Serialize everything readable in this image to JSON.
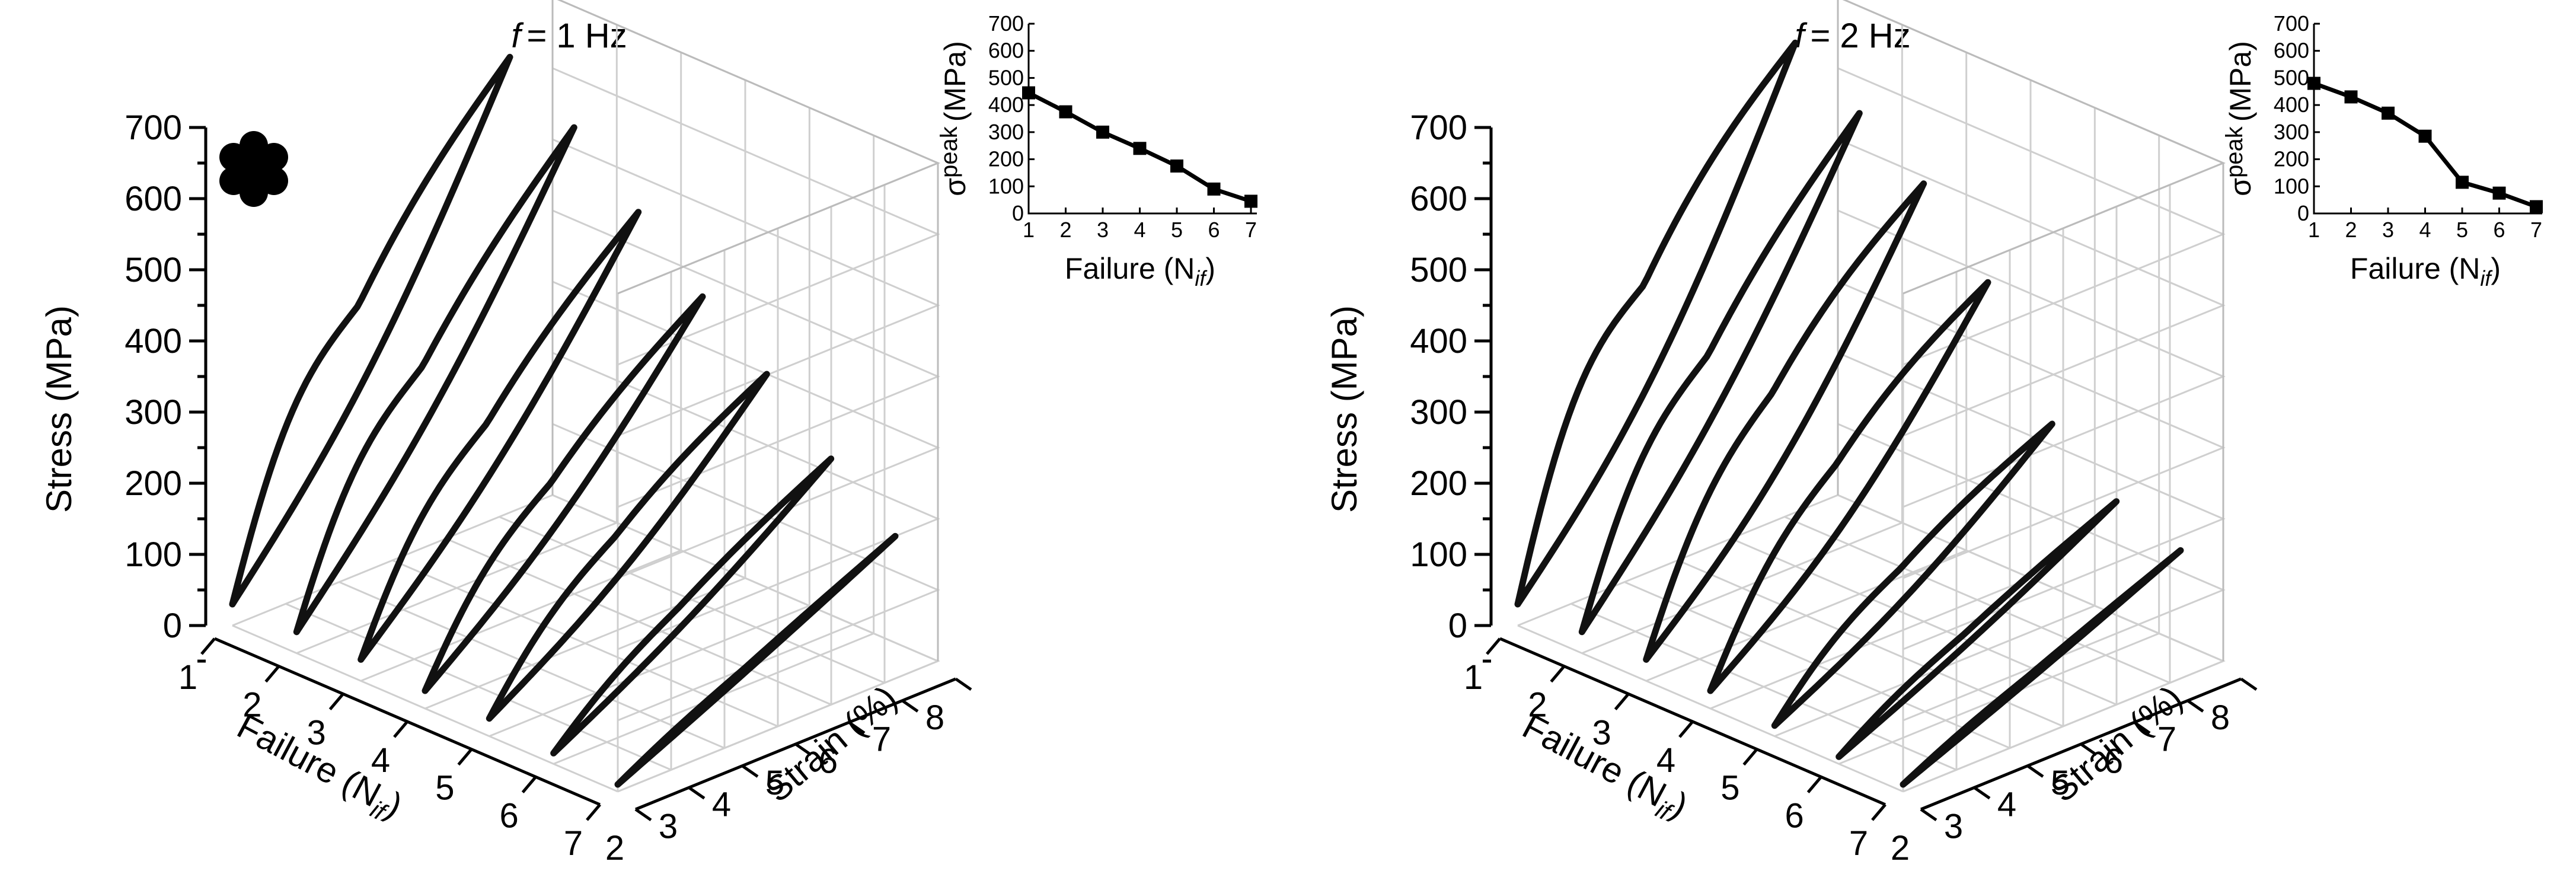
{
  "chart_data": [
    {
      "type": "line",
      "title": "= 1 Hz",
      "title_italic": "f",
      "zlabel": "Stress (MPa)",
      "xlabel_prefix": "Failure (N",
      "xlabel_sub": "if",
      "xlabel_suffix": ")",
      "ylabel": "Strain (%)",
      "zticks": [
        "0",
        "100",
        "200",
        "300",
        "400",
        "500",
        "600",
        "700"
      ],
      "xticks": [
        "1",
        "2",
        "3",
        "4",
        "5",
        "6",
        "7"
      ],
      "yticks": [
        "2",
        "3",
        "4",
        "5",
        "6",
        "7",
        "8"
      ],
      "zlim": [
        0,
        700
      ],
      "xlim": [
        1,
        7
      ],
      "ylim": [
        2,
        8
      ],
      "series": [
        {
          "failure": 1,
          "strain_min": 2.0,
          "strain_max": 7.2,
          "stress_min": 30,
          "stress_max": 640,
          "bulge": 55,
          "knee_stress": 250
        },
        {
          "failure": 2,
          "strain_min": 2.0,
          "strain_max": 7.2,
          "stress_min": 30,
          "stress_max": 580,
          "bulge": 40,
          "knee_stress": 200
        },
        {
          "failure": 3,
          "strain_min": 2.0,
          "strain_max": 7.2,
          "stress_min": 30,
          "stress_max": 500,
          "bulge": 36,
          "knee_stress": 150
        },
        {
          "failure": 4,
          "strain_min": 2.0,
          "strain_max": 7.2,
          "stress_min": 25,
          "stress_max": 420,
          "bulge": 32,
          "knee_stress": 110
        },
        {
          "failure": 5,
          "strain_min": 2.0,
          "strain_max": 7.2,
          "stress_min": 25,
          "stress_max": 350,
          "bulge": 28,
          "knee_stress": 80
        },
        {
          "failure": 6,
          "strain_min": 2.0,
          "strain_max": 7.2,
          "stress_min": 15,
          "stress_max": 270,
          "bulge": 14,
          "knee_stress": 40
        },
        {
          "failure": 7,
          "strain_min": 2.0,
          "strain_max": 7.2,
          "stress_min": 10,
          "stress_max": 200,
          "bulge": 3,
          "knee_stress": 20
        }
      ],
      "inset": {
        "type": "line",
        "ylabel_main": "σ",
        "ylabel_sub": "peak",
        "ylabel_unit": "(MPa)",
        "xlabel_prefix": "Failure (N",
        "xlabel_sub": "if",
        "xlabel_suffix": ")",
        "x": [
          1,
          2,
          3,
          4,
          5,
          6,
          7
        ],
        "y": [
          445,
          375,
          300,
          240,
          175,
          90,
          45
        ],
        "ylim": [
          0,
          700
        ],
        "xticks": [
          "1",
          "2",
          "3",
          "4",
          "5",
          "6",
          "7"
        ],
        "yticks": [
          "0",
          "100",
          "200",
          "300",
          "400",
          "500",
          "600",
          "700"
        ]
      }
    },
    {
      "type": "line",
      "title": "= 2 Hz",
      "title_italic": "f",
      "zlabel": "Stress (MPa)",
      "xlabel_prefix": "Failure (N",
      "xlabel_sub": "if",
      "xlabel_suffix": ")",
      "ylabel": "Strain (%)",
      "zticks": [
        "0",
        "100",
        "200",
        "300",
        "400",
        "500",
        "600",
        "700"
      ],
      "xticks": [
        "1",
        "2",
        "3",
        "4",
        "5",
        "6",
        "7"
      ],
      "yticks": [
        "2",
        "3",
        "4",
        "5",
        "6",
        "7",
        "8"
      ],
      "zlim": [
        0,
        700
      ],
      "xlim": [
        1,
        7
      ],
      "ylim": [
        2,
        8
      ],
      "series": [
        {
          "failure": 1,
          "strain_min": 2.0,
          "strain_max": 7.2,
          "stress_min": 30,
          "stress_max": 660,
          "bulge": 70,
          "knee_stress": 290
        },
        {
          "failure": 2,
          "strain_min": 2.0,
          "strain_max": 7.2,
          "stress_min": 30,
          "stress_max": 600,
          "bulge": 45,
          "knee_stress": 210
        },
        {
          "failure": 3,
          "strain_min": 2.0,
          "strain_max": 7.2,
          "stress_min": 30,
          "stress_max": 540,
          "bulge": 55,
          "knee_stress": 160
        },
        {
          "failure": 4,
          "strain_min": 2.0,
          "strain_max": 7.2,
          "stress_min": 25,
          "stress_max": 440,
          "bulge": 45,
          "knee_stress": 110
        },
        {
          "failure": 5,
          "strain_min": 2.0,
          "strain_max": 7.2,
          "stress_min": 15,
          "stress_max": 280,
          "bulge": 22,
          "knee_stress": 60
        },
        {
          "failure": 6,
          "strain_min": 2.0,
          "strain_max": 7.2,
          "stress_min": 10,
          "stress_max": 210,
          "bulge": 8,
          "knee_stress": 30
        },
        {
          "failure": 7,
          "strain_min": 2.0,
          "strain_max": 7.2,
          "stress_min": 10,
          "stress_max": 180,
          "bulge": 3,
          "knee_stress": 20
        }
      ],
      "inset": {
        "type": "line",
        "ylabel_main": "σ",
        "ylabel_sub": "peak",
        "ylabel_unit": "(MPa)",
        "xlabel_prefix": "Failure (N",
        "xlabel_sub": "if",
        "xlabel_suffix": ")",
        "x": [
          1,
          2,
          3,
          4,
          5,
          6,
          7
        ],
        "y": [
          480,
          430,
          370,
          285,
          115,
          75,
          25
        ],
        "ylim": [
          0,
          700
        ],
        "xticks": [
          "1",
          "2",
          "3",
          "4",
          "5",
          "6",
          "7"
        ],
        "yticks": [
          "0",
          "100",
          "200",
          "300",
          "400",
          "500",
          "600",
          "700"
        ]
      }
    }
  ]
}
